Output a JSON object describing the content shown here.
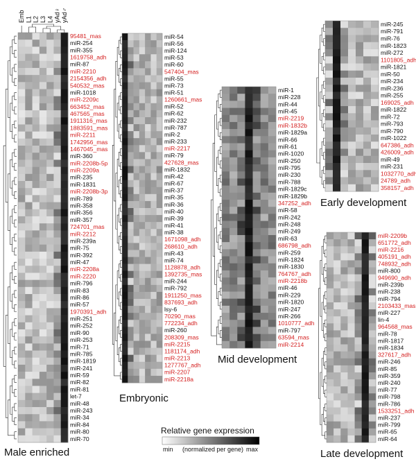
{
  "columns": [
    "Emb",
    "L1",
    "L2",
    "L3",
    "L4",
    "yAd♀",
    "yAd♂"
  ],
  "highlight_color": "#d42020",
  "text_color": "#111111",
  "panels": {
    "male": {
      "title": "Male enriched",
      "rows": [
        {
          "label": "95481_mas",
          "red": true
        },
        {
          "label": "miR-254"
        },
        {
          "label": "miR-355"
        },
        {
          "label": "1619758_adh",
          "red": true
        },
        {
          "label": "miR-87"
        },
        {
          "label": "miR-2210",
          "red": true
        },
        {
          "label": "2154356_adh",
          "red": true
        },
        {
          "label": "540532_mas",
          "red": true
        },
        {
          "label": "miR-1018"
        },
        {
          "label": "miR-2209c",
          "red": true
        },
        {
          "label": "663452_mas",
          "red": true
        },
        {
          "label": "467565_mas",
          "red": true
        },
        {
          "label": "1911316_mas",
          "red": true
        },
        {
          "label": "1883591_mas",
          "red": true
        },
        {
          "label": "miR-2211",
          "red": true
        },
        {
          "label": "1742956_mas",
          "red": true
        },
        {
          "label": "1467045_mas",
          "red": true
        },
        {
          "label": "miR-360"
        },
        {
          "label": "miR-2208b-5p",
          "red": true
        },
        {
          "label": "miR-2209a",
          "red": true
        },
        {
          "label": "miR-235"
        },
        {
          "label": "miR-1831"
        },
        {
          "label": "miR-2208b-3p",
          "red": true
        },
        {
          "label": "miR-789"
        },
        {
          "label": "miR-358"
        },
        {
          "label": "miR-356"
        },
        {
          "label": "miR-357"
        },
        {
          "label": "724701_mas",
          "red": true
        },
        {
          "label": "miR-2212",
          "red": true
        },
        {
          "label": "miR-239a"
        },
        {
          "label": "miR-75"
        },
        {
          "label": "miR-392"
        },
        {
          "label": "miR-47"
        },
        {
          "label": "miR-2208a",
          "red": true
        },
        {
          "label": "miR-2220",
          "red": true
        },
        {
          "label": "miR-796"
        },
        {
          "label": "miR-83"
        },
        {
          "label": "miR-86"
        },
        {
          "label": "miR-57"
        },
        {
          "label": "1970391_adh",
          "red": true
        },
        {
          "label": "miR-251"
        },
        {
          "label": "miR-252"
        },
        {
          "label": "miR-90"
        },
        {
          "label": "miR-253"
        },
        {
          "label": "miR-71"
        },
        {
          "label": "miR-785"
        },
        {
          "label": "miR-1819"
        },
        {
          "label": "miR-241"
        },
        {
          "label": "miR-59"
        },
        {
          "label": "miR-82"
        },
        {
          "label": "miR-81"
        },
        {
          "label": "let-7"
        },
        {
          "label": "miR-48"
        },
        {
          "label": "miR-243"
        },
        {
          "label": "miR-34"
        },
        {
          "label": "miR-84"
        },
        {
          "label": "miR-80"
        },
        {
          "label": "miR-70"
        }
      ]
    },
    "embryonic": {
      "title": "Embryonic",
      "rows": [
        {
          "label": "miR-54"
        },
        {
          "label": "miR-56"
        },
        {
          "label": "miR-124"
        },
        {
          "label": "miR-53"
        },
        {
          "label": "miR-60"
        },
        {
          "label": "547404_mas",
          "red": true
        },
        {
          "label": "miR-55"
        },
        {
          "label": "miR-73"
        },
        {
          "label": "miR-51"
        },
        {
          "label": "1260661_mas",
          "red": true
        },
        {
          "label": "miR-52"
        },
        {
          "label": "miR-62"
        },
        {
          "label": "miR-232"
        },
        {
          "label": "miR-787"
        },
        {
          "label": "miR-2"
        },
        {
          "label": "miR-233"
        },
        {
          "label": "miR-2217",
          "red": true
        },
        {
          "label": "miR-79"
        },
        {
          "label": "427628_mas",
          "red": true
        },
        {
          "label": "miR-1832"
        },
        {
          "label": "miR-42"
        },
        {
          "label": "miR-67"
        },
        {
          "label": "miR-37"
        },
        {
          "label": "miR-35"
        },
        {
          "label": "miR-36"
        },
        {
          "label": "miR-40"
        },
        {
          "label": "miR-39"
        },
        {
          "label": "miR-41"
        },
        {
          "label": "miR-38"
        },
        {
          "label": "1671098_adh",
          "red": true
        },
        {
          "label": "268610_adh",
          "red": true
        },
        {
          "label": "miR-43"
        },
        {
          "label": "miR-74"
        },
        {
          "label": "1128878_adh",
          "red": true
        },
        {
          "label": "1392735_mas",
          "red": true
        },
        {
          "label": "miR-244"
        },
        {
          "label": "miR-792"
        },
        {
          "label": "1911250_mas",
          "red": true
        },
        {
          "label": "837693_adh",
          "red": true
        },
        {
          "label": "lsy-6"
        },
        {
          "label": "70290_mas",
          "red": true
        },
        {
          "label": "772234_adh",
          "red": true
        },
        {
          "label": "miR-260"
        },
        {
          "label": "208309_mas",
          "red": true
        },
        {
          "label": "miR-2215",
          "red": true
        },
        {
          "label": "1181174_adh",
          "red": true
        },
        {
          "label": "miR-2213",
          "red": true
        },
        {
          "label": "1277767_adh",
          "red": true
        },
        {
          "label": "miR-2207",
          "red": true
        },
        {
          "label": "miR-2218a",
          "red": true
        }
      ]
    },
    "mid": {
      "title": "Mid development",
      "rows": [
        {
          "label": "miR-1"
        },
        {
          "label": "miR-228"
        },
        {
          "label": "miR-44"
        },
        {
          "label": "miR-45"
        },
        {
          "label": "miR-2219",
          "red": true
        },
        {
          "label": "miR-1832b",
          "red": true
        },
        {
          "label": "miR-1829a"
        },
        {
          "label": "miR-66"
        },
        {
          "label": "miR-61"
        },
        {
          "label": "miR-1020"
        },
        {
          "label": "miR-250"
        },
        {
          "label": "miR-795"
        },
        {
          "label": "miR-230"
        },
        {
          "label": "miR-788"
        },
        {
          "label": "miR-1829c"
        },
        {
          "label": "miR-1829b"
        },
        {
          "label": "347252_adh",
          "red": true
        },
        {
          "label": "miR-58"
        },
        {
          "label": "miR-242"
        },
        {
          "label": "miR-248"
        },
        {
          "label": "miR-249"
        },
        {
          "label": "miR-63"
        },
        {
          "label": "686798_adh",
          "red": true
        },
        {
          "label": "miR-259"
        },
        {
          "label": "miR-1824"
        },
        {
          "label": "miR-1830"
        },
        {
          "label": "764767_adh",
          "red": true
        },
        {
          "label": "miR-2218b",
          "red": true
        },
        {
          "label": "miR-46"
        },
        {
          "label": "miR-229"
        },
        {
          "label": "miR-1820"
        },
        {
          "label": "miR-247"
        },
        {
          "label": "miR-266"
        },
        {
          "label": "1010777_adh",
          "red": true
        },
        {
          "label": "miR-797"
        },
        {
          "label": "63594_mas",
          "red": true
        },
        {
          "label": "miR-2214",
          "red": true
        }
      ]
    },
    "early": {
      "title": "Early development",
      "rows": [
        {
          "label": "miR-245"
        },
        {
          "label": "miR-791"
        },
        {
          "label": "miR-76"
        },
        {
          "label": "miR-1823"
        },
        {
          "label": "miR-272"
        },
        {
          "label": "1101805_adh",
          "red": true
        },
        {
          "label": "miR-1821"
        },
        {
          "label": "miR-50"
        },
        {
          "label": "miR-234"
        },
        {
          "label": "miR-236"
        },
        {
          "label": "miR-255"
        },
        {
          "label": "169025_adh",
          "red": true
        },
        {
          "label": "miR-1822"
        },
        {
          "label": "miR-72"
        },
        {
          "label": "miR-793"
        },
        {
          "label": "miR-790"
        },
        {
          "label": "miR-1022"
        },
        {
          "label": "647386_adh",
          "red": true
        },
        {
          "label": "426009_adh",
          "red": true
        },
        {
          "label": "miR-49"
        },
        {
          "label": "miR-231"
        },
        {
          "label": "1032770_adh",
          "red": true
        },
        {
          "label": "24789_adh",
          "red": true
        },
        {
          "label": "358157_adh",
          "red": true
        }
      ]
    },
    "late": {
      "title": "Late development",
      "rows": [
        {
          "label": "miR-2209b",
          "red": true
        },
        {
          "label": "651772_adh",
          "red": true
        },
        {
          "label": "miR-2216",
          "red": true
        },
        {
          "label": "405191_adh",
          "red": true
        },
        {
          "label": "748932_adh",
          "red": true
        },
        {
          "label": "miR-800"
        },
        {
          "label": "949690_adh",
          "red": true
        },
        {
          "label": "miR-239b"
        },
        {
          "label": "miR-238"
        },
        {
          "label": "miR-794"
        },
        {
          "label": "2103433_mas",
          "red": true
        },
        {
          "label": "miR-227"
        },
        {
          "label": "lin-4"
        },
        {
          "label": "964568_mas",
          "red": true
        },
        {
          "label": "miR-78"
        },
        {
          "label": "miR-1817"
        },
        {
          "label": "miR-1834"
        },
        {
          "label": "327617_adh",
          "red": true
        },
        {
          "label": "miR-246"
        },
        {
          "label": "miR-85"
        },
        {
          "label": "miR-359"
        },
        {
          "label": "miR-240"
        },
        {
          "label": "miR-77"
        },
        {
          "label": "miR-798"
        },
        {
          "label": "miR-786"
        },
        {
          "label": "1533251_adh",
          "red": true
        },
        {
          "label": "miR-237"
        },
        {
          "label": "miR-799"
        },
        {
          "label": "miR-65"
        },
        {
          "label": "miR-64"
        }
      ]
    }
  },
  "legend": {
    "title": "Relative gene expression",
    "min_label": "min",
    "subtitle": "(normalized per gene)",
    "max_label": "max"
  }
}
